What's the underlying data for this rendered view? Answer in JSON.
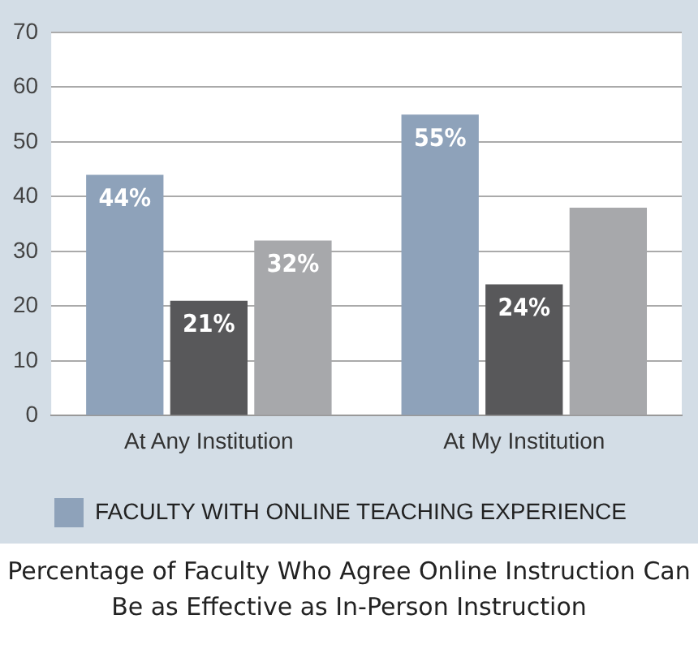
{
  "chart_data": {
    "type": "bar",
    "title": "Percentage of Faculty Who Agree Online Instruction Can Be as Effective as In-Person Instruction",
    "categories": [
      "At Any Institution",
      "At My Institution"
    ],
    "series": [
      {
        "name": "FACULTY WITH ONLINE TEACHING EXPERIENCE",
        "color": "#8ea2ba",
        "values": [
          44,
          55
        ],
        "value_labels": [
          "44%",
          "55%"
        ]
      },
      {
        "color": "#58585a",
        "values": [
          21,
          24
        ],
        "value_labels": [
          "21%",
          "24%"
        ]
      },
      {
        "color": "#a7a8ab",
        "values": [
          32,
          38
        ],
        "value_labels": [
          "32%",
          null
        ]
      }
    ],
    "ylim": [
      0,
      70
    ],
    "yticks": [
      0,
      10,
      20,
      30,
      40,
      50,
      60,
      70
    ],
    "grid": "y",
    "legend": "bottom"
  }
}
